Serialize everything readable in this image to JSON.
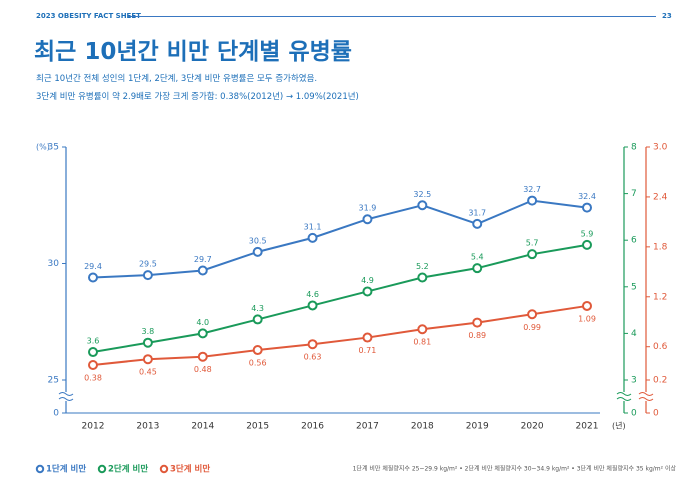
{
  "header": {
    "left": "2023 OBESITY FACT SHEET",
    "page": "23"
  },
  "title": "최근 10년간 비만 단계별 유병률",
  "subtitle": [
    "최근 10년간 전체 성인의 1단계, 2단계, 3단계 비만 유병률은 모두 증가하였음.",
    "3단계 비만 유병률이 약 2.9배로 가장 크게 증가함: 0.38%(2012년) → 1.09%(2021년)"
  ],
  "chart_data": {
    "type": "line",
    "categories": [
      "2012",
      "2013",
      "2014",
      "2015",
      "2016",
      "2017",
      "2018",
      "2019",
      "2020",
      "2021"
    ],
    "x_unit": "(년)",
    "y_unit": "(%)",
    "ylim": [
      25,
      35
    ],
    "yticks": [
      25,
      30,
      35
    ],
    "yfloor": 0,
    "y2lim": [
      3,
      8
    ],
    "y2ticks": [
      3,
      4,
      5,
      6,
      7,
      8
    ],
    "y2floor": 0,
    "y3lim": [
      0.2,
      3
    ],
    "y3ticks": [
      0.2,
      0.6,
      1.2,
      1.8,
      2.4,
      {
        "value": 3,
        "label": "3.0"
      }
    ],
    "y3floor": 0,
    "axis_colors": {
      "y": "#3a78c2",
      "y2": "#1a9a5a",
      "y3": "#e0593a"
    },
    "series": [
      {
        "name": "1단계 비만",
        "color": "#3a78c2",
        "axis": "y",
        "values": [
          29.4,
          29.5,
          29.7,
          30.5,
          31.1,
          31.9,
          32.5,
          31.7,
          32.7,
          32.4
        ]
      },
      {
        "name": "2단계 비만",
        "color": "#1a9a5a",
        "axis": "y2",
        "values": [
          3.6,
          3.8,
          4.0,
          4.3,
          4.6,
          4.9,
          5.2,
          5.4,
          5.7,
          5.9
        ],
        "value_labels": [
          "3.6",
          "3.8",
          "4.0",
          "4.3",
          "4.6",
          "4.9",
          "5.2",
          "5.4",
          "5.7",
          "5.9"
        ]
      },
      {
        "name": "3단계 비만",
        "color": "#e0593a",
        "axis": "y3",
        "values": [
          0.38,
          0.45,
          0.48,
          0.56,
          0.63,
          0.71,
          0.81,
          0.89,
          0.99,
          1.09
        ]
      }
    ],
    "note": "1단계 비만 체질량지수 25~29.9 kg/m² • 2단계 비만 체질량지수 30~34.9 kg/m² • 3단계 비만 체질량지수 35 kg/m² 이상"
  }
}
